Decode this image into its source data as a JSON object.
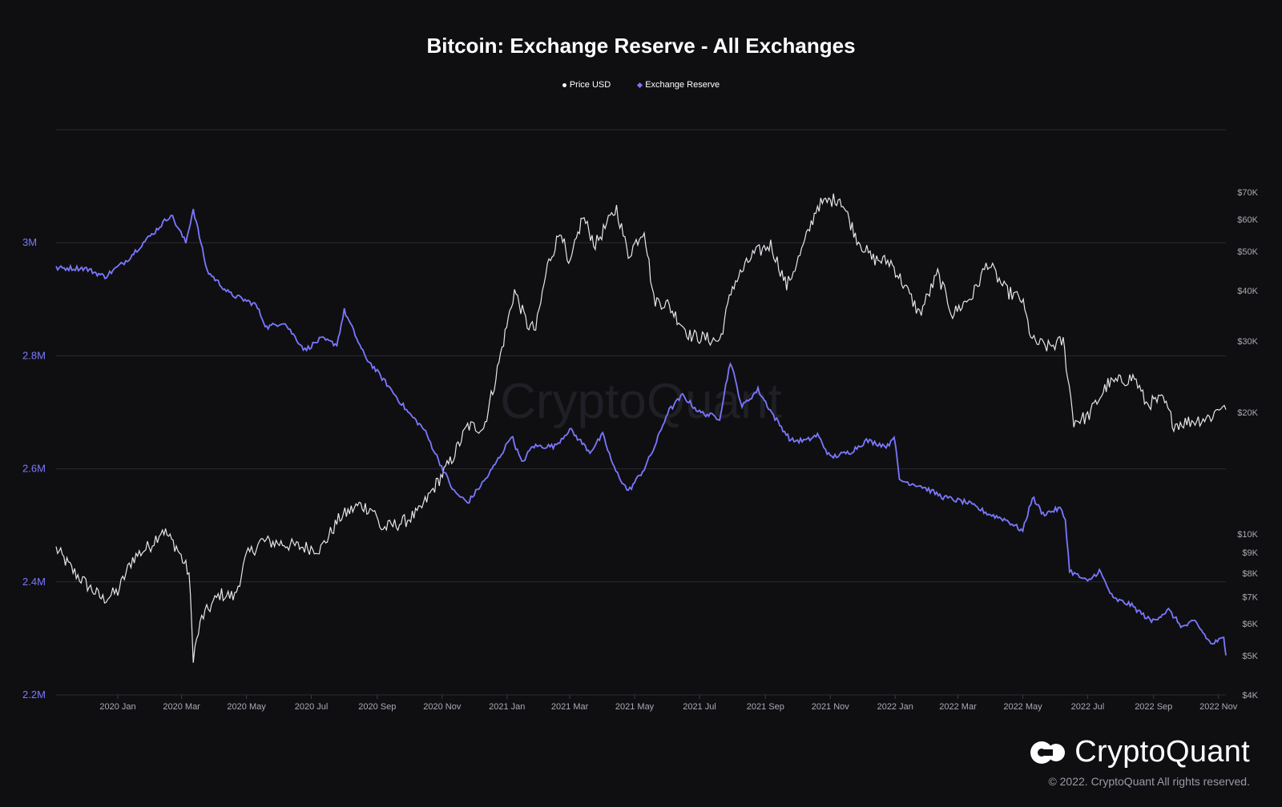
{
  "title": "Bitcoin: Exchange Reserve - All Exchanges",
  "legend": [
    {
      "label": "Price USD",
      "color": "#ffffff"
    },
    {
      "label": "Exchange Reserve",
      "color": "#7b78ff"
    }
  ],
  "watermark": "CryptoQuant",
  "brand": {
    "name": "CryptoQuant",
    "copyright": "© 2022. CryptoQuant All rights reserved."
  },
  "chart_data": {
    "type": "line",
    "x_ticks": [
      "2020 Jan",
      "2020 Mar",
      "2020 May",
      "2020 Jul",
      "2020 Sep",
      "2020 Nov",
      "2021 Jan",
      "2021 Mar",
      "2021 May",
      "2021 Jul",
      "2021 Sep",
      "2021 Nov",
      "2022 Jan",
      "2022 Mar",
      "2022 May",
      "2022 Jul",
      "2022 Sep",
      "2022 Nov"
    ],
    "x_range": [
      "2019-11-04",
      "2022-11-08"
    ],
    "y_left": {
      "ticks": [
        "2.2M",
        "2.4M",
        "2.6M",
        "2.8M",
        "3M"
      ],
      "values": [
        2200000,
        2400000,
        2600000,
        2800000,
        3000000
      ],
      "range": [
        2200000,
        3200000
      ]
    },
    "y_right": {
      "scale": "log",
      "ticks": [
        "$4K",
        "$5K",
        "$6K",
        "$7K",
        "$8K",
        "$9K",
        "$10K",
        "$20K",
        "$30K",
        "$40K",
        "$50K",
        "$60K",
        "$70K"
      ],
      "values": [
        4000,
        5000,
        6000,
        7000,
        8000,
        9000,
        10000,
        20000,
        30000,
        40000,
        50000,
        60000,
        70000
      ],
      "range": [
        4000,
        100000
      ]
    },
    "grid": "horizontal",
    "legend_position": "top-center",
    "series": [
      {
        "name": "Price USD",
        "axis": "right",
        "color": "#e6e6ea",
        "points": [
          [
            "2019-11-04",
            9200
          ],
          [
            "2019-11-20",
            8100
          ],
          [
            "2019-12-05",
            7400
          ],
          [
            "2019-12-18",
            6900
          ],
          [
            "2020-01-01",
            7200
          ],
          [
            "2020-01-15",
            8700
          ],
          [
            "2020-02-01",
            9400
          ],
          [
            "2020-02-12",
            10300
          ],
          [
            "2020-02-25",
            9300
          ],
          [
            "2020-03-08",
            8000
          ],
          [
            "2020-03-12",
            5000
          ],
          [
            "2020-03-20",
            6200
          ],
          [
            "2020-04-06",
            7100
          ],
          [
            "2020-04-20",
            7000
          ],
          [
            "2020-05-01",
            8800
          ],
          [
            "2020-05-15",
            9600
          ],
          [
            "2020-06-01",
            9500
          ],
          [
            "2020-06-20",
            9300
          ],
          [
            "2020-07-10",
            9200
          ],
          [
            "2020-07-28",
            11000
          ],
          [
            "2020-08-15",
            11800
          ],
          [
            "2020-08-28",
            11500
          ],
          [
            "2020-09-05",
            10300
          ],
          [
            "2020-09-25",
            10700
          ],
          [
            "2020-10-10",
            11300
          ],
          [
            "2020-10-25",
            13100
          ],
          [
            "2020-11-10",
            15300
          ],
          [
            "2020-11-25",
            18500
          ],
          [
            "2020-12-10",
            18300
          ],
          [
            "2020-12-20",
            23500
          ],
          [
            "2021-01-08",
            40000
          ],
          [
            "2021-01-20",
            33000
          ],
          [
            "2021-01-28",
            32000
          ],
          [
            "2021-02-08",
            46000
          ],
          [
            "2021-02-21",
            57000
          ],
          [
            "2021-02-28",
            45000
          ],
          [
            "2021-03-13",
            61000
          ],
          [
            "2021-03-25",
            52000
          ],
          [
            "2021-04-14",
            64000
          ],
          [
            "2021-04-25",
            49000
          ],
          [
            "2021-05-10",
            57000
          ],
          [
            "2021-05-19",
            38000
          ],
          [
            "2021-06-01",
            37000
          ],
          [
            "2021-06-22",
            31000
          ],
          [
            "2021-07-20",
            30000
          ],
          [
            "2021-08-01",
            41000
          ],
          [
            "2021-08-20",
            49000
          ],
          [
            "2021-09-06",
            52000
          ],
          [
            "2021-09-21",
            41000
          ],
          [
            "2021-10-05",
            50000
          ],
          [
            "2021-10-20",
            65000
          ],
          [
            "2021-11-10",
            68000
          ],
          [
            "2021-11-26",
            54000
          ],
          [
            "2021-12-10",
            48000
          ],
          [
            "2021-12-28",
            47000
          ],
          [
            "2022-01-10",
            41000
          ],
          [
            "2022-01-24",
            35000
          ],
          [
            "2022-02-10",
            44000
          ],
          [
            "2022-02-24",
            35000
          ],
          [
            "2022-03-15",
            39000
          ],
          [
            "2022-03-29",
            47000
          ],
          [
            "2022-04-15",
            40000
          ],
          [
            "2022-04-30",
            38000
          ],
          [
            "2022-05-10",
            30000
          ],
          [
            "2022-05-25",
            29000
          ],
          [
            "2022-06-08",
            30000
          ],
          [
            "2022-06-18",
            19000
          ],
          [
            "2022-07-01",
            19500
          ],
          [
            "2022-07-20",
            23500
          ],
          [
            "2022-08-14",
            24400
          ],
          [
            "2022-08-25",
            21000
          ],
          [
            "2022-09-10",
            21500
          ],
          [
            "2022-09-20",
            18700
          ],
          [
            "2022-10-10",
            19100
          ],
          [
            "2022-10-25",
            19500
          ],
          [
            "2022-11-05",
            21000
          ],
          [
            "2022-11-08",
            20300
          ]
        ]
      },
      {
        "name": "Exchange Reserve",
        "axis": "left",
        "color": "#7b78ff",
        "points": [
          [
            "2019-11-04",
            2955000
          ],
          [
            "2019-12-01",
            2955000
          ],
          [
            "2019-12-20",
            2940000
          ],
          [
            "2020-01-10",
            2970000
          ],
          [
            "2020-01-25",
            3000000
          ],
          [
            "2020-02-05",
            3020000
          ],
          [
            "2020-02-20",
            3050000
          ],
          [
            "2020-03-05",
            3000000
          ],
          [
            "2020-03-12",
            3060000
          ],
          [
            "2020-03-25",
            2950000
          ],
          [
            "2020-04-15",
            2910000
          ],
          [
            "2020-05-10",
            2890000
          ],
          [
            "2020-05-20",
            2850000
          ],
          [
            "2020-06-05",
            2860000
          ],
          [
            "2020-06-25",
            2810000
          ],
          [
            "2020-07-10",
            2830000
          ],
          [
            "2020-07-25",
            2820000
          ],
          [
            "2020-08-01",
            2880000
          ],
          [
            "2020-08-20",
            2800000
          ],
          [
            "2020-09-10",
            2750000
          ],
          [
            "2020-09-30",
            2700000
          ],
          [
            "2020-10-15",
            2670000
          ],
          [
            "2020-10-30",
            2610000
          ],
          [
            "2020-11-12",
            2560000
          ],
          [
            "2020-11-25",
            2540000
          ],
          [
            "2020-12-15",
            2590000
          ],
          [
            "2020-12-31",
            2640000
          ],
          [
            "2021-01-05",
            2660000
          ],
          [
            "2021-01-15",
            2610000
          ],
          [
            "2021-01-25",
            2640000
          ],
          [
            "2021-02-15",
            2640000
          ],
          [
            "2021-03-01",
            2670000
          ],
          [
            "2021-03-20",
            2630000
          ],
          [
            "2021-04-01",
            2660000
          ],
          [
            "2021-04-12",
            2600000
          ],
          [
            "2021-04-25",
            2560000
          ],
          [
            "2021-05-10",
            2600000
          ],
          [
            "2021-05-20",
            2640000
          ],
          [
            "2021-06-01",
            2700000
          ],
          [
            "2021-06-15",
            2730000
          ],
          [
            "2021-07-01",
            2700000
          ],
          [
            "2021-07-20",
            2690000
          ],
          [
            "2021-07-30",
            2790000
          ],
          [
            "2021-08-10",
            2710000
          ],
          [
            "2021-08-25",
            2740000
          ],
          [
            "2021-09-10",
            2690000
          ],
          [
            "2021-09-25",
            2650000
          ],
          [
            "2021-10-10",
            2650000
          ],
          [
            "2021-10-20",
            2660000
          ],
          [
            "2021-11-01",
            2620000
          ],
          [
            "2021-11-20",
            2630000
          ],
          [
            "2021-12-05",
            2650000
          ],
          [
            "2021-12-25",
            2640000
          ],
          [
            "2021-12-31",
            2660000
          ],
          [
            "2022-01-05",
            2580000
          ],
          [
            "2022-01-25",
            2570000
          ],
          [
            "2022-02-15",
            2550000
          ],
          [
            "2022-03-10",
            2540000
          ],
          [
            "2022-03-30",
            2520000
          ],
          [
            "2022-04-15",
            2510000
          ],
          [
            "2022-05-01",
            2490000
          ],
          [
            "2022-05-10",
            2550000
          ],
          [
            "2022-05-20",
            2520000
          ],
          [
            "2022-06-05",
            2530000
          ],
          [
            "2022-06-10",
            2510000
          ],
          [
            "2022-06-14",
            2420000
          ],
          [
            "2022-07-01",
            2400000
          ],
          [
            "2022-07-12",
            2420000
          ],
          [
            "2022-07-25",
            2370000
          ],
          [
            "2022-08-10",
            2360000
          ],
          [
            "2022-08-30",
            2330000
          ],
          [
            "2022-09-15",
            2350000
          ],
          [
            "2022-09-28",
            2320000
          ],
          [
            "2022-10-10",
            2330000
          ],
          [
            "2022-10-25",
            2290000
          ],
          [
            "2022-11-06",
            2300000
          ],
          [
            "2022-11-08",
            2270000
          ]
        ]
      }
    ]
  }
}
